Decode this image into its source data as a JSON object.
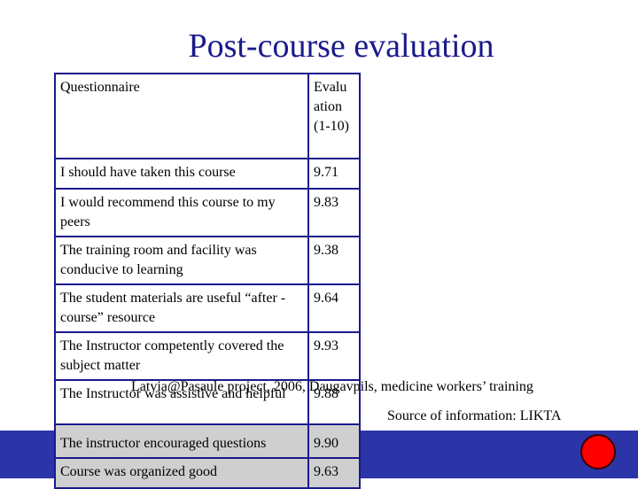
{
  "title": "Post-course evaluation",
  "table": {
    "header": {
      "question": "Questionnaire",
      "value": "Evalu ation (1-10)"
    },
    "rows": [
      {
        "question": "I should have taken this course",
        "value": "9.71"
      },
      {
        "question": "I would recommend this course to my peers",
        "value": "9.83"
      },
      {
        "question": "The training room and facility was conducive to learning",
        "value": "9.38"
      },
      {
        "question": "The student materials are useful “after -course” resource",
        "value": "9.64"
      },
      {
        "question": "The Instructor competently covered the subject matter",
        "value": "9.93"
      },
      {
        "question": "The Instructor was assistive and helpful",
        "value": "9.88"
      },
      {
        "question": "The instructor encouraged questions",
        "value": "9.90"
      },
      {
        "question": "Course was organized good",
        "value": "9.63"
      }
    ]
  },
  "project_note": "Latvia@Pasaule project, 2006, Daugavpils, medicine workers’ training",
  "source_note": "Source of information: LIKTA",
  "colors": {
    "title": "#1a1a8c",
    "border": "#1a1a8c",
    "footer_bar": "#2b35a8",
    "indicator": "#ff0000",
    "gray_row": "#cfcfcf"
  }
}
